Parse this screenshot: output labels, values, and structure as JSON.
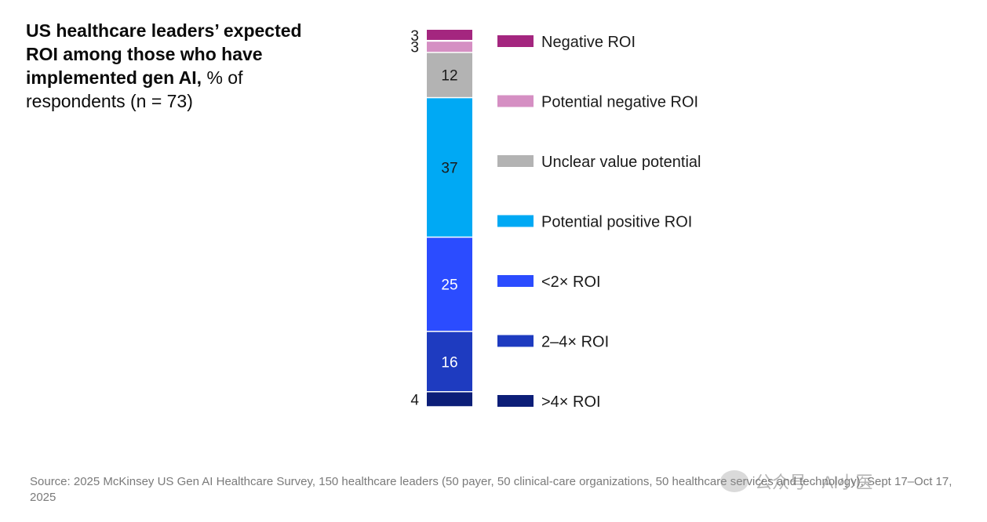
{
  "title": {
    "bold": "US healthcare leaders’ expected ROI among those who have implemented gen AI,",
    "rest": " % of respondents (n = 73)"
  },
  "chart_data": {
    "type": "bar",
    "stacked": true,
    "orientation": "vertical",
    "categories": [
      ""
    ],
    "series": [
      {
        "name": ">4× ROI",
        "values": [
          4
        ],
        "color": "#0c1e78"
      },
      {
        "name": "2–4× ROI",
        "values": [
          16
        ],
        "color": "#1e3bc0"
      },
      {
        "name": "<2× ROI",
        "values": [
          25
        ],
        "color": "#2b4cff"
      },
      {
        "name": "Potential positive ROI",
        "values": [
          37
        ],
        "color": "#00a9f4"
      },
      {
        "name": "Unclear value potential",
        "values": [
          12
        ],
        "color": "#b3b3b3"
      },
      {
        "name": "Potential negative ROI",
        "values": [
          3
        ],
        "color": "#d58fc3"
      },
      {
        "name": "Negative ROI",
        "values": [
          3
        ],
        "color": "#a4267f"
      }
    ],
    "legend_placement": "right",
    "grid": false
  },
  "source": "Source: 2025 McKinsey US Gen AI Healthcare Survey, 150 healthcare leaders (50 payer, 50 clinical-care organizations, 50 healthcare services and technology), Sept 17–Oct 17, 2025",
  "watermark": "公众号 · AI小医"
}
